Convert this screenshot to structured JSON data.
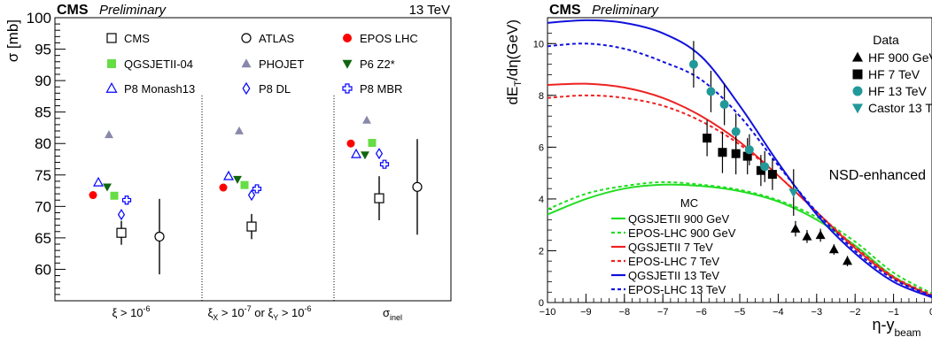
{
  "chart_data": [
    {
      "type": "scatter",
      "header_left": "CMS",
      "header_left_sub": "Preliminary",
      "header_right": "13 TeV",
      "ylabel": "σ [mb]",
      "ylim": [
        55,
        100
      ],
      "yticks": [
        60,
        65,
        70,
        75,
        80,
        85,
        90,
        95,
        100
      ],
      "grid": false,
      "legend_position": "top",
      "categories": [
        "ξ > 10^-6",
        "ξX > 10^-7 or ξY > 10^-6",
        "σinel"
      ],
      "category_labels": [
        {
          "main": "ξ > 10",
          "sup": "-6"
        },
        {
          "p1": "ξ",
          "s1": "X",
          "p2": " > 10",
          "sup2": "-7",
          "p3": " or ξ",
          "s3": "Y",
          "p4": " > 10",
          "sup4": "-6"
        },
        {
          "main": "σ",
          "sub": "inel"
        }
      ],
      "series": [
        {
          "name": "CMS",
          "marker": "square-open",
          "color": "#000000",
          "values": [
            65.8,
            66.8,
            71.3
          ],
          "err_low": [
            1.9,
            2.0,
            3.5
          ],
          "err_high": [
            1.9,
            2.0,
            3.5
          ]
        },
        {
          "name": "ATLAS",
          "marker": "circle-open",
          "color": "#000000",
          "values": [
            65.2,
            null,
            73.1
          ],
          "err_low": [
            6.0,
            null,
            7.6
          ],
          "err_high": [
            6.0,
            null,
            7.6
          ]
        },
        {
          "name": "EPOS LHC",
          "marker": "circle",
          "color": "#ff0000",
          "values": [
            71.8,
            73.0,
            80.0
          ]
        },
        {
          "name": "QGSJETII-04",
          "marker": "square",
          "color": "#66dd44",
          "values": [
            71.7,
            73.4,
            80.1
          ]
        },
        {
          "name": "PHOJET",
          "marker": "triangle-up",
          "color": "#8888aa",
          "values": [
            81.4,
            82.0,
            83.7
          ]
        },
        {
          "name": "P6 Z2*",
          "marker": "triangle-down",
          "color": "#116611",
          "values": [
            73.1,
            74.3,
            78.2
          ]
        },
        {
          "name": "P8 Monash13",
          "marker": "triangle-up-open",
          "color": "#0000ff",
          "values": [
            73.8,
            74.8,
            78.3
          ]
        },
        {
          "name": "P8 DL",
          "marker": "diamond-open",
          "color": "#0000ff",
          "values": [
            68.7,
            71.8,
            78.4
          ]
        },
        {
          "name": "P8 MBR",
          "marker": "cross-open",
          "color": "#0000ff",
          "values": [
            71.0,
            72.8,
            76.7
          ]
        }
      ]
    },
    {
      "type": "line",
      "header_left": "CMS",
      "header_left_sub": "Preliminary",
      "ylabel": "dE_T/dη(GeV)",
      "ylabel_parts": {
        "a": "dE",
        "sub": "T",
        "b": "/dη(GeV)"
      },
      "xlabel_parts": {
        "a": "η-y",
        "sub": "beam"
      },
      "xlim": [
        -10,
        0
      ],
      "ylim": [
        0,
        11
      ],
      "xticks": [
        -10,
        -9,
        -8,
        -7,
        -6,
        -5,
        -4,
        -3,
        -2,
        -1,
        0
      ],
      "xtick_labels": [
        "−10",
        "−9",
        "−8",
        "−7",
        "−6",
        "−5",
        "−4",
        "−3",
        "−2",
        "−1",
        "0"
      ],
      "yticks": [
        0,
        2,
        4,
        6,
        8,
        10
      ],
      "grid": false,
      "annotation": "NSD-enhanced",
      "legend_data_title": "Data",
      "legend_mc_title": "MC",
      "lines": [
        {
          "name": "QGSJETII 900 GeV",
          "color": "#22dd22",
          "dash": false,
          "x": [
            -10,
            -9,
            -8,
            -7,
            -6,
            -5,
            -4,
            -3,
            -2,
            -1,
            0
          ],
          "y": [
            3.4,
            4.0,
            4.4,
            4.55,
            4.5,
            4.3,
            3.9,
            3.2,
            2.2,
            1.0,
            0.25
          ]
        },
        {
          "name": "EPOS-LHC 900 GeV",
          "color": "#22dd22",
          "dash": true,
          "x": [
            -10,
            -9,
            -8,
            -7,
            -6,
            -5,
            -4,
            -3,
            -2,
            -1,
            0
          ],
          "y": [
            3.6,
            4.2,
            4.5,
            4.65,
            4.55,
            4.35,
            3.95,
            3.3,
            2.35,
            1.15,
            0.35
          ]
        },
        {
          "name": "QGSJETII 7 TeV",
          "color": "#ee2222",
          "dash": false,
          "x": [
            -10,
            -9,
            -8,
            -7,
            -6,
            -5,
            -4,
            -3,
            -2,
            -1,
            0
          ],
          "y": [
            8.4,
            8.45,
            8.3,
            7.9,
            7.2,
            6.2,
            4.9,
            3.5,
            2.1,
            0.95,
            0.25
          ]
        },
        {
          "name": "EPOS-LHC 7 TeV",
          "color": "#ee2222",
          "dash": true,
          "x": [
            -10,
            -9,
            -8,
            -7,
            -6,
            -5,
            -4,
            -3,
            -2,
            -1,
            0
          ],
          "y": [
            7.9,
            8.0,
            7.9,
            7.6,
            7.0,
            6.1,
            4.9,
            3.5,
            2.15,
            1.0,
            0.3
          ]
        },
        {
          "name": "QGSJETII 13 TeV",
          "color": "#1111dd",
          "dash": false,
          "x": [
            -10,
            -9,
            -8,
            -7,
            -6,
            -5,
            -4,
            -3,
            -2,
            -1,
            0
          ],
          "y": [
            10.8,
            10.9,
            10.8,
            10.4,
            9.5,
            7.6,
            5.4,
            3.4,
            1.9,
            0.8,
            0.2
          ]
        },
        {
          "name": "EPOS-LHC 13 TeV",
          "color": "#1111dd",
          "dash": true,
          "x": [
            -10,
            -9,
            -8,
            -7,
            -6,
            -5,
            -4,
            -3,
            -2,
            -1,
            0
          ],
          "y": [
            9.9,
            10.0,
            9.8,
            9.3,
            8.6,
            7.2,
            5.3,
            3.5,
            2.0,
            0.9,
            0.25
          ]
        }
      ],
      "data_series": [
        {
          "name": "HF 900 GeV",
          "marker": "triangle-up",
          "color": "#000000",
          "x": [
            -3.55,
            -3.25,
            -2.9,
            -2.55,
            -2.2
          ],
          "y": [
            2.85,
            2.55,
            2.6,
            2.05,
            1.6
          ],
          "err": [
            0.3,
            0.25,
            0.25,
            0.2,
            0.2
          ]
        },
        {
          "name": "HF 7 TeV",
          "marker": "square",
          "color": "#000000",
          "x": [
            -5.85,
            -5.45,
            -5.1,
            -4.8,
            -4.45,
            -4.15
          ],
          "y": [
            6.35,
            5.8,
            5.75,
            5.65,
            5.1,
            4.95
          ],
          "err": [
            0.7,
            0.8,
            0.8,
            0.7,
            0.6,
            0.6
          ]
        },
        {
          "name": "HF 13 TeV",
          "marker": "circle",
          "color": "#229999",
          "x": [
            -6.2,
            -5.75,
            -5.4,
            -5.1,
            -4.75,
            -4.35
          ],
          "y": [
            9.2,
            8.15,
            7.65,
            6.6,
            5.9,
            5.25
          ],
          "err": [
            0.9,
            0.8,
            0.8,
            0.7,
            0.6,
            0.6
          ]
        },
        {
          "name": "Castor 13 TeV",
          "marker": "triangle-down",
          "color": "#229999",
          "x": [
            -3.6
          ],
          "y": [
            4.25
          ],
          "err": [
            0.9
          ]
        }
      ]
    }
  ]
}
